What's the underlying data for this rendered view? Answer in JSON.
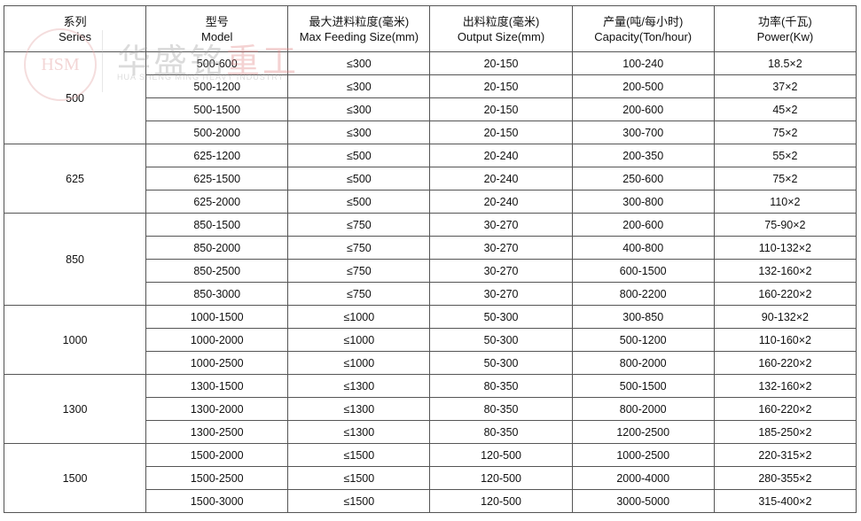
{
  "watermark": {
    "logo": "HSM",
    "cn_gray": "华盛铭",
    "cn_red": "重工",
    "en": "HUA SHENG MING HEAVY INDUSTRY"
  },
  "headers": [
    {
      "cn": "系列",
      "en": "Series"
    },
    {
      "cn": "型号",
      "en": "Model"
    },
    {
      "cn": "最大进料粒度(毫米)",
      "en": "Max Feeding Size(mm)"
    },
    {
      "cn": "出料粒度(毫米)",
      "en": "Output Size(mm)"
    },
    {
      "cn": "产量(吨/每小时)",
      "en": "Capacity(Ton/hour)"
    },
    {
      "cn": "功率(千瓦)",
      "en": "Power(Kw)"
    }
  ],
  "groups": [
    {
      "series": "500",
      "rows": [
        [
          "500-600",
          "≤300",
          "20-150",
          "100-240",
          "18.5×2"
        ],
        [
          "500-1200",
          "≤300",
          "20-150",
          "200-500",
          "37×2"
        ],
        [
          "500-1500",
          "≤300",
          "20-150",
          "200-600",
          "45×2"
        ],
        [
          "500-2000",
          "≤300",
          "20-150",
          "300-700",
          "75×2"
        ]
      ]
    },
    {
      "series": "625",
      "rows": [
        [
          "625-1200",
          "≤500",
          "20-240",
          "200-350",
          "55×2"
        ],
        [
          "625-1500",
          "≤500",
          "20-240",
          "250-600",
          "75×2"
        ],
        [
          "625-2000",
          "≤500",
          "20-240",
          "300-800",
          "110×2"
        ]
      ]
    },
    {
      "series": "850",
      "rows": [
        [
          "850-1500",
          "≤750",
          "30-270",
          "200-600",
          "75-90×2"
        ],
        [
          "850-2000",
          "≤750",
          "30-270",
          "400-800",
          "110-132×2"
        ],
        [
          "850-2500",
          "≤750",
          "30-270",
          "600-1500",
          "132-160×2"
        ],
        [
          "850-3000",
          "≤750",
          "30-270",
          "800-2200",
          "160-220×2"
        ]
      ]
    },
    {
      "series": "1000",
      "rows": [
        [
          "1000-1500",
          "≤1000",
          "50-300",
          "300-850",
          "90-132×2"
        ],
        [
          "1000-2000",
          "≤1000",
          "50-300",
          "500-1200",
          "110-160×2"
        ],
        [
          "1000-2500",
          "≤1000",
          "50-300",
          "800-2000",
          "160-220×2"
        ]
      ]
    },
    {
      "series": "1300",
      "rows": [
        [
          "1300-1500",
          "≤1300",
          "80-350",
          "500-1500",
          "132-160×2"
        ],
        [
          "1300-2000",
          "≤1300",
          "80-350",
          "800-2000",
          "160-220×2"
        ],
        [
          "1300-2500",
          "≤1300",
          "80-350",
          "1200-2500",
          "185-250×2"
        ]
      ]
    },
    {
      "series": "1500",
      "rows": [
        [
          "1500-2000",
          "≤1500",
          "120-500",
          "1000-2500",
          "220-315×2"
        ],
        [
          "1500-2500",
          "≤1500",
          "120-500",
          "2000-4000",
          "280-355×2"
        ],
        [
          "1500-3000",
          "≤1500",
          "120-500",
          "3000-5000",
          "315-400×2"
        ]
      ]
    }
  ]
}
